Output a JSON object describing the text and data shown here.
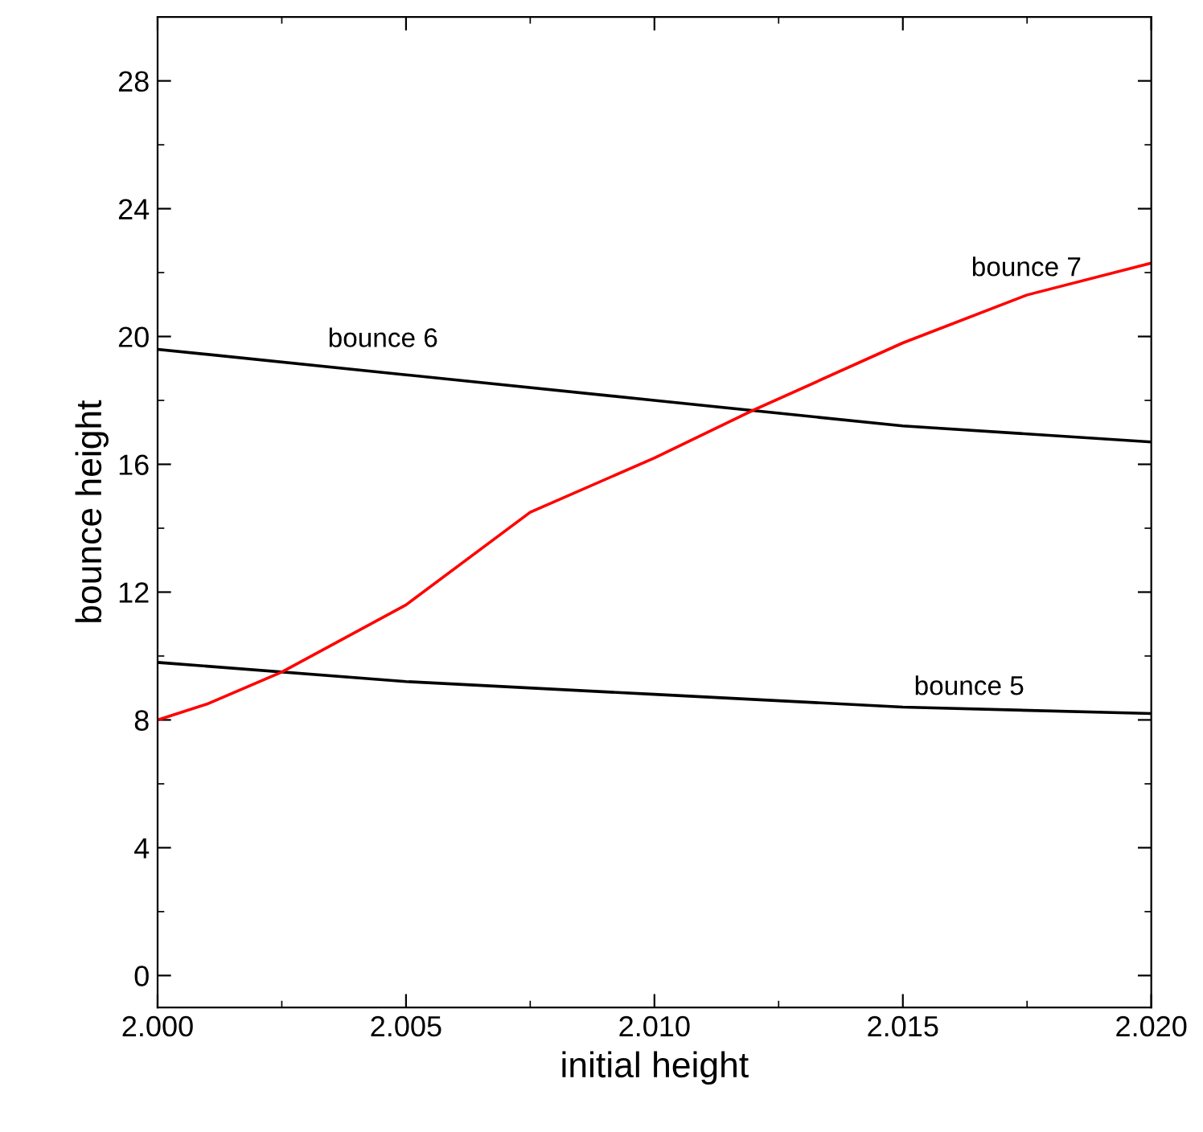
{
  "chart_data": {
    "type": "line",
    "xlabel": "initial height",
    "ylabel": "bounce height",
    "xlim": [
      2.0,
      2.02
    ],
    "ylim": [
      -1,
      30
    ],
    "xticks": [
      {
        "value": 2.0,
        "label": "2.000"
      },
      {
        "value": 2.005,
        "label": "2.005"
      },
      {
        "value": 2.01,
        "label": "2.010"
      },
      {
        "value": 2.015,
        "label": "2.015"
      },
      {
        "value": 2.02,
        "label": "2.020"
      }
    ],
    "yticks": [
      0,
      4,
      8,
      12,
      16,
      20,
      24,
      28
    ],
    "grid": false,
    "legend": false,
    "marker": "none",
    "line_style": "solid",
    "x": [
      2.0,
      2.001,
      2.0025,
      2.005,
      2.0075,
      2.01,
      2.012,
      2.015,
      2.0175,
      2.02
    ],
    "series": [
      {
        "name": "bounce 5",
        "color": "#000000",
        "x": [
          2.0,
          2.005,
          2.01,
          2.015,
          2.02
        ],
        "values": [
          9.8,
          9.2,
          8.8,
          8.4,
          8.2
        ]
      },
      {
        "name": "bounce 6",
        "color": "#000000",
        "x": [
          2.0,
          2.005,
          2.01,
          2.015,
          2.02
        ],
        "values": [
          19.6,
          18.8,
          18.0,
          17.2,
          16.7
        ]
      },
      {
        "name": "bounce 7",
        "color": "#ff0000",
        "values": [
          8.0,
          8.5,
          9.5,
          11.6,
          14.5,
          16.2,
          17.7,
          19.8,
          21.3,
          22.3
        ]
      }
    ]
  }
}
